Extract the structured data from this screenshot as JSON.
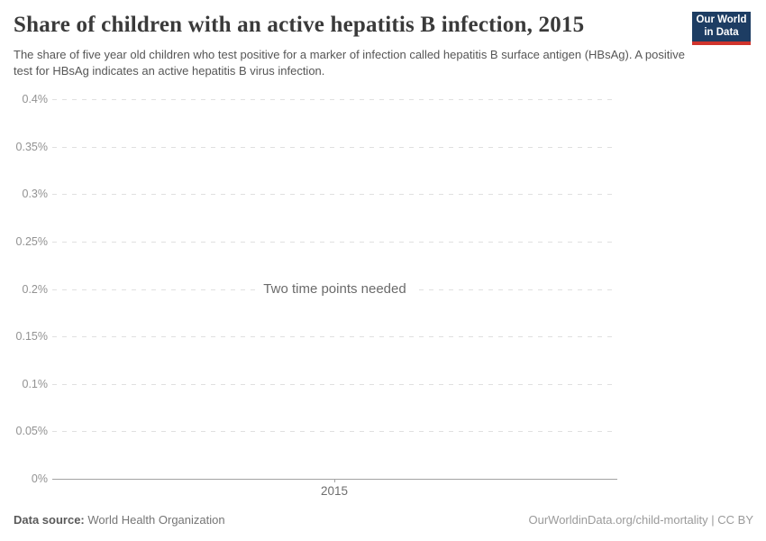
{
  "header": {
    "title": "Share of children with an active hepatitis B infection, 2015",
    "subtitle": "The share of five year old children who test positive for a marker of infection called hepatitis B surface antigen (HBsAg). A positive test for HBsAg indicates an active hepatitis B virus infection."
  },
  "logo": {
    "line1": "Our World",
    "line2": "in Data",
    "bg_color": "#1d3d63",
    "stripe_color": "#d0342c"
  },
  "chart_data": {
    "type": "line",
    "title": "Share of children with an active hepatitis B infection, 2015",
    "empty_message": "Two time points needed",
    "series": [],
    "x_ticks": [
      "2015"
    ],
    "y_ticks": [
      "0%",
      "0.05%",
      "0.1%",
      "0.15%",
      "0.2%",
      "0.25%",
      "0.3%",
      "0.35%",
      "0.4%"
    ],
    "ylim": [
      0,
      0.4
    ],
    "y_unit": "%",
    "grid": true,
    "gridline_color": "#e0e0e0",
    "axis_color": "#a3a3a3",
    "legend": "none"
  },
  "footer": {
    "source_label": "Data source:",
    "source_value": "World Health Organization",
    "attribution": "OurWorldinData.org/child-mortality | CC BY"
  }
}
